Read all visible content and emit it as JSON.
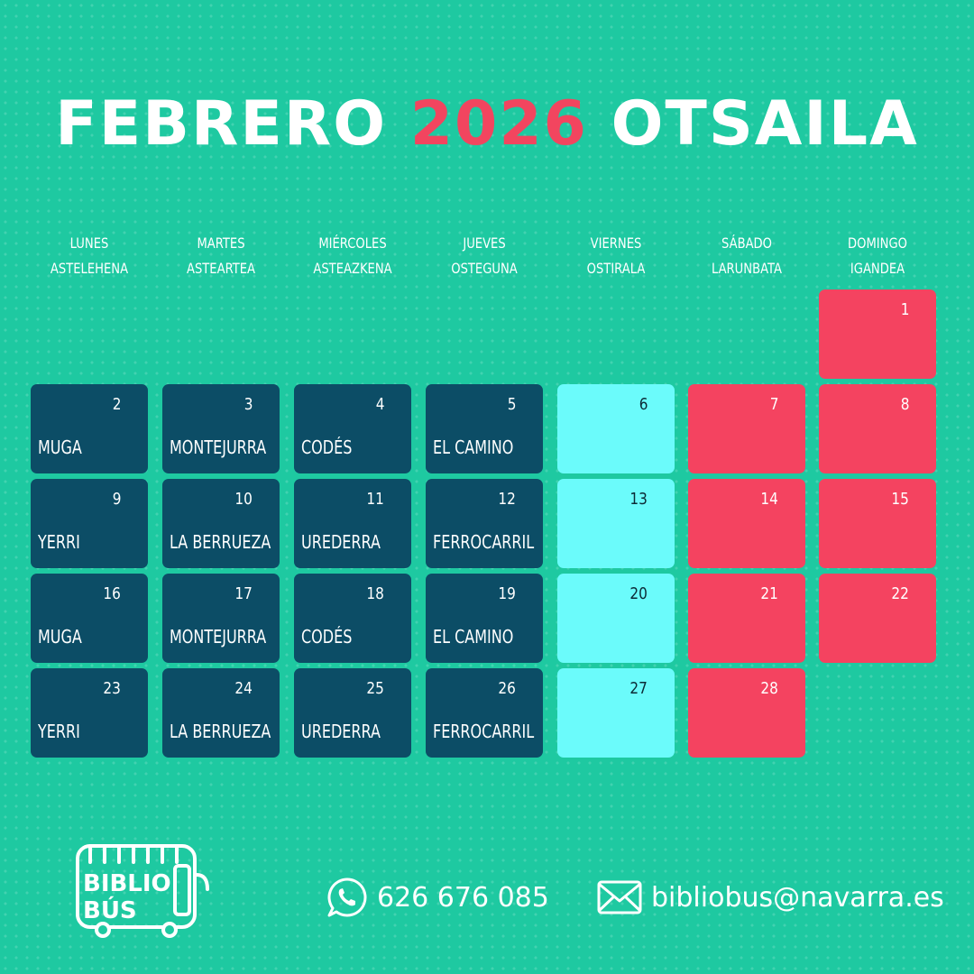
{
  "title": {
    "month_es": "FEBRERO",
    "year": "2026",
    "month_eu": "OTSAILA"
  },
  "colors": {
    "background": "#1ec9a1",
    "weekday_cell": "#0c4d66",
    "friday_cell": "#6bfbfb",
    "weekend_cell": "#f44360",
    "year_accent": "#f2455f"
  },
  "weekdays": [
    {
      "es": "LUNES",
      "eu": "ASTELEHENA"
    },
    {
      "es": "MARTES",
      "eu": "ASTEARTEA"
    },
    {
      "es": "MIÉRCOLES",
      "eu": "ASTEAZKENA"
    },
    {
      "es": "JUEVES",
      "eu": "OSTEGUNA"
    },
    {
      "es": "VIERNES",
      "eu": "OSTIRALA"
    },
    {
      "es": "SÁBADO",
      "eu": "LARUNBATA"
    },
    {
      "es": "DOMINGO",
      "eu": "IGANDEA"
    }
  ],
  "days": [
    {
      "day": "1",
      "place": "",
      "type": "red"
    },
    {
      "day": "2",
      "place": "MUGA",
      "type": "dark"
    },
    {
      "day": "3",
      "place": "MONTEJURRA",
      "type": "dark"
    },
    {
      "day": "4",
      "place": "CODÉS",
      "type": "dark"
    },
    {
      "day": "5",
      "place": "EL CAMINO",
      "type": "dark"
    },
    {
      "day": "6",
      "place": "",
      "type": "light"
    },
    {
      "day": "7",
      "place": "",
      "type": "red"
    },
    {
      "day": "8",
      "place": "",
      "type": "red"
    },
    {
      "day": "9",
      "place": "YERRI",
      "type": "dark"
    },
    {
      "day": "10",
      "place": "LA BERRUEZA",
      "type": "dark"
    },
    {
      "day": "11",
      "place": "UREDERRA",
      "type": "dark"
    },
    {
      "day": "12",
      "place": "FERROCARRIL",
      "type": "dark"
    },
    {
      "day": "13",
      "place": "",
      "type": "light"
    },
    {
      "day": "14",
      "place": "",
      "type": "red"
    },
    {
      "day": "15",
      "place": "",
      "type": "red"
    },
    {
      "day": "16",
      "place": "MUGA",
      "type": "dark"
    },
    {
      "day": "17",
      "place": "MONTEJURRA",
      "type": "dark"
    },
    {
      "day": "18",
      "place": "CODÉS",
      "type": "dark"
    },
    {
      "day": "19",
      "place": "EL CAMINO",
      "type": "dark"
    },
    {
      "day": "20",
      "place": "",
      "type": "light"
    },
    {
      "day": "21",
      "place": "",
      "type": "red"
    },
    {
      "day": "22",
      "place": "",
      "type": "red"
    },
    {
      "day": "23",
      "place": "YERRI",
      "type": "dark"
    },
    {
      "day": "24",
      "place": "LA BERRUEZA",
      "type": "dark"
    },
    {
      "day": "25",
      "place": "UREDERRA",
      "type": "dark"
    },
    {
      "day": "26",
      "place": "FERROCARRIL",
      "type": "dark"
    },
    {
      "day": "27",
      "place": "",
      "type": "light"
    },
    {
      "day": "28",
      "place": "",
      "type": "red"
    }
  ],
  "logo": {
    "line1": "BIBLIO",
    "line2": "BÚS"
  },
  "contact": {
    "phone": "626 676 085",
    "phone_icon": "whatsapp-icon",
    "email": "bibliobus@navarra.es",
    "email_icon": "envelope-icon"
  }
}
